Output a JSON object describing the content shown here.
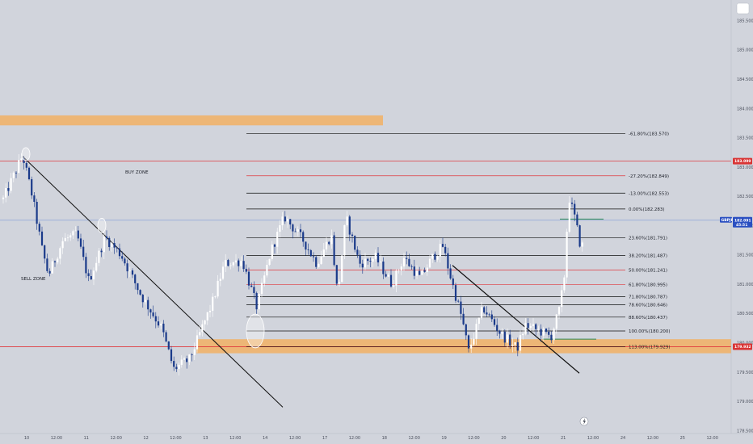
{
  "colors": {
    "background": "#d1d4dc",
    "candle_up": "#ffffff",
    "candle_down": "#1a3a8a",
    "orange_zone": "#f0b26a",
    "red_line": "#e0393e",
    "blue_line": "#7f9ad6",
    "black_line": "#111111",
    "green_line": "#2e8b57",
    "price_badge_blue": "#2a4fc1",
    "price_badge_red": "#d93434"
  },
  "chart_data": {
    "type": "candlestick",
    "symbol_badge": "GBPJPY",
    "current_price_label": "182.091",
    "countdown_label": "45:51",
    "red_level_label": "183.099",
    "support_level_label": "179.932",
    "y_axis": {
      "ylim": [
        178.45,
        185.85
      ],
      "ticks": [
        185.5,
        185.0,
        184.5,
        184.0,
        183.5,
        183.0,
        182.5,
        182.0,
        181.5,
        181.0,
        180.5,
        180.0,
        179.5,
        179.0,
        178.5
      ],
      "tick_labels": [
        "185.500",
        "185.000",
        "184.500",
        "184.000",
        "183.500",
        "183.000",
        "182.500",
        "182.000",
        "181.500",
        "181.000",
        "180.500",
        "180.000",
        "179.500",
        "179.000",
        "178.500"
      ]
    },
    "x_axis": {
      "tick_labels": [
        "10",
        "12:00",
        "11",
        "12:00",
        "12",
        "12:00",
        "13",
        "12:00",
        "14",
        "12:00",
        "17",
        "12:00",
        "18",
        "12:00",
        "19",
        "12:00",
        "20",
        "12:00",
        "21",
        "12:00",
        "24",
        "12:00",
        "25",
        "12:00"
      ]
    },
    "annotations": {
      "buy_zone": "BUY ZONE",
      "sell_zone": "SELL ZONE"
    },
    "fib_levels": [
      {
        "label": "-61.80%(183.570)",
        "price": 183.57,
        "color": "black"
      },
      {
        "label": "-27.20%(182.849)",
        "price": 182.849,
        "color": "red"
      },
      {
        "label": "-13.00%(182.553)",
        "price": 182.553,
        "color": "black"
      },
      {
        "label": "0.00%(182.283)",
        "price": 182.283,
        "color": "black"
      },
      {
        "label": "23.60%(181.791)",
        "price": 181.791,
        "color": "black"
      },
      {
        "label": "38.20%(181.487)",
        "price": 181.487,
        "color": "black"
      },
      {
        "label": "50.00%(181.241)",
        "price": 181.241,
        "color": "red"
      },
      {
        "label": "61.80%(180.995)",
        "price": 180.995,
        "color": "red"
      },
      {
        "label": "71.80%(180.787)",
        "price": 180.787,
        "color": "black"
      },
      {
        "label": "78.60%(180.646)",
        "price": 180.646,
        "color": "black"
      },
      {
        "label": "88.60%(180.437)",
        "price": 180.437,
        "color": "black"
      },
      {
        "label": "100.00%(180.200)",
        "price": 180.2,
        "color": "black"
      },
      {
        "label": "113.00%(179.929)",
        "price": 179.929,
        "color": "black"
      }
    ],
    "horizontal_levels": [
      {
        "name": "red-resistance",
        "price": 183.099,
        "color": "red"
      },
      {
        "name": "blue-current",
        "price": 182.091,
        "color": "blue"
      },
      {
        "name": "red-support",
        "price": 179.932,
        "color": "red"
      }
    ],
    "zones": [
      {
        "name": "upper-orange-zone",
        "price_top": 183.88,
        "price_bottom": 183.71
      },
      {
        "name": "lower-orange-zone",
        "price_top": 180.06,
        "price_bottom": 179.82
      }
    ]
  }
}
